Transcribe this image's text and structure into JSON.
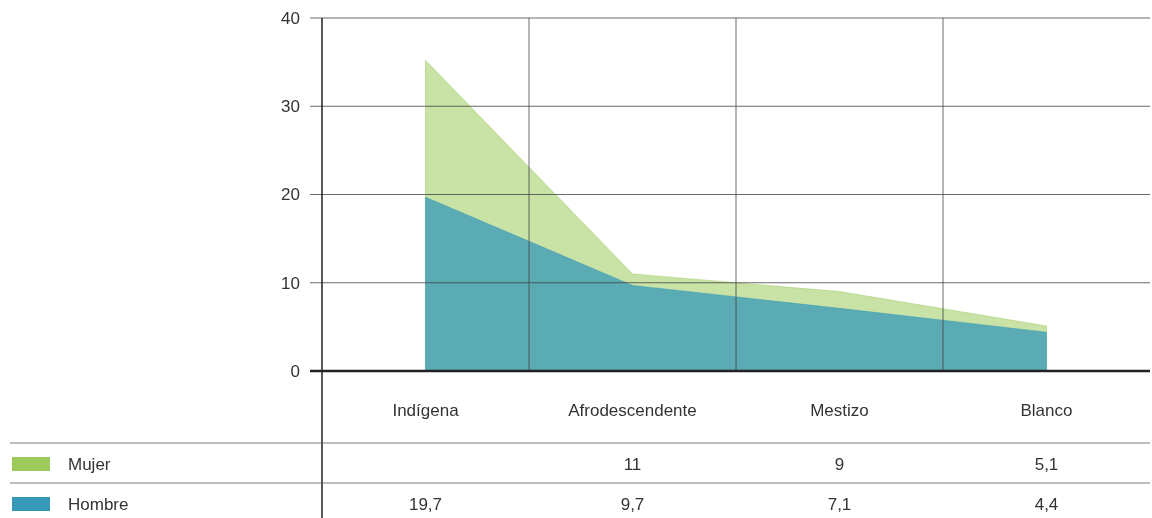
{
  "chart_data": {
    "type": "area",
    "categories": [
      "Indígena",
      "Afrodescendente",
      "Mestizo",
      "Blanco"
    ],
    "series": [
      {
        "name": "Mujer",
        "color": "#9ccb5c",
        "values": [
          35.2,
          11,
          9,
          5.1
        ],
        "value_labels": [
          null,
          "11",
          "9",
          "5,1"
        ]
      },
      {
        "name": "Hombre",
        "color": "#3598b9",
        "values": [
          19.7,
          9.7,
          7.1,
          4.4
        ],
        "value_labels": [
          "19,7",
          "9,7",
          "7,1",
          "4,4"
        ]
      }
    ],
    "ylim": [
      0,
      40
    ],
    "yticks": [
      0,
      10,
      20,
      30,
      40
    ],
    "grid": true,
    "legend": "bottom left"
  }
}
